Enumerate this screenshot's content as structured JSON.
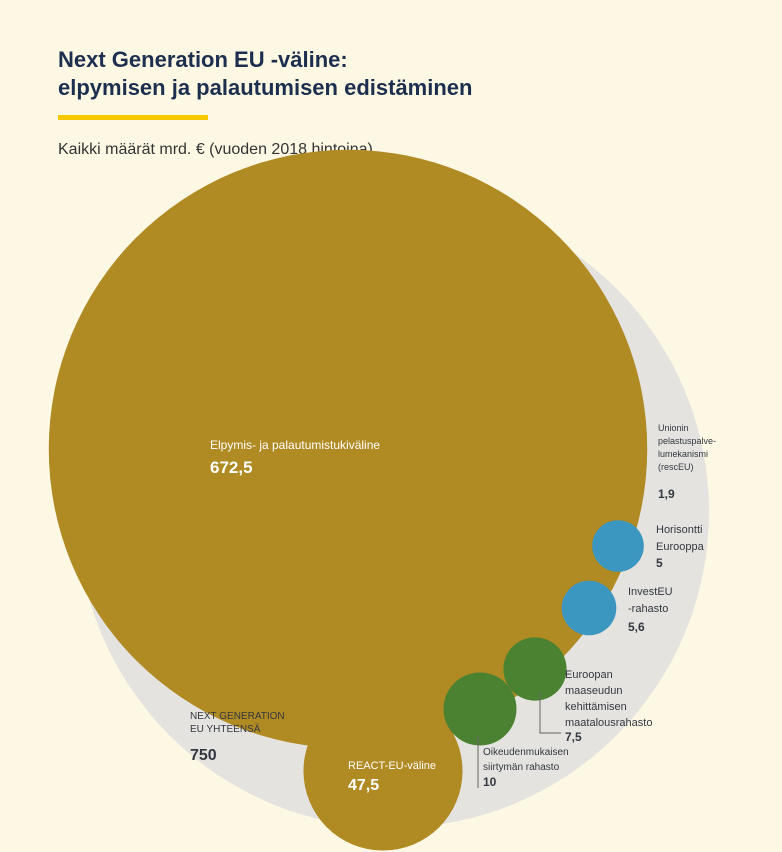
{
  "title_line1": "Next Generation EU -väline:",
  "title_line2": "elpymisen ja palautumisen edistäminen",
  "subtitle": "Kaikki määrät mrd. € (vuoden 2018 hintoina)",
  "colors": {
    "background": "#fdf8e4",
    "title": "#1c2f4f",
    "accent_rule": "#f6c800",
    "outer_circle": "#e4e3e0",
    "gold": "#b08a22",
    "blue": "#3b96c0",
    "green": "#4a8231",
    "label_dark": "#33373f"
  },
  "chart_data": {
    "type": "bubble",
    "unit": "mrd. €",
    "total": {
      "label": [
        "NEXT GENERATION",
        "EU YHTEENSÄ"
      ],
      "value": 750,
      "value_text": "750"
    },
    "items": [
      {
        "label": [
          "Elpymis- ja palautumistukiväline"
        ],
        "value": 672.5,
        "value_text": "672,5",
        "color": "gold"
      },
      {
        "label": [
          "REACT-EU-väline"
        ],
        "value": 47.5,
        "value_text": "47,5",
        "color": "gold"
      },
      {
        "label": [
          "Unionin",
          "pelastuspalve-",
          "lumekanismi",
          "(rescEU)"
        ],
        "value": 1.9,
        "value_text": "1,9",
        "color": "gold"
      },
      {
        "label": [
          "Horisontti",
          "Eurooppa"
        ],
        "value": 5,
        "value_text": "5",
        "color": "blue"
      },
      {
        "label": [
          "InvestEU",
          "-rahasto"
        ],
        "value": 5.6,
        "value_text": "5,6",
        "color": "blue"
      },
      {
        "label": [
          "Euroopan",
          "maaseudun",
          "kehittämisen",
          "maatalousrahasto"
        ],
        "value": 7.5,
        "value_text": "7,5",
        "color": "green"
      },
      {
        "label": [
          "Oikeudenmukaisen",
          "siirtymän rahasto"
        ],
        "value": 10,
        "value_text": "10",
        "color": "green"
      }
    ]
  }
}
